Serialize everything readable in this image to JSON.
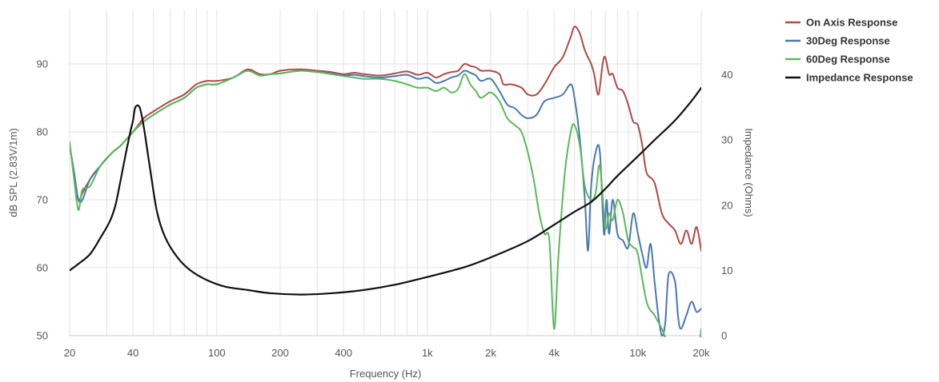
{
  "chart_data": {
    "type": "line",
    "x_scale": "log",
    "xlim": [
      20,
      20000
    ],
    "ylim": [
      50,
      98
    ],
    "y2lim": [
      0,
      50
    ],
    "xlabel": "Frequency (Hz)",
    "ylabel": "dB SPL (2.83V/1m)",
    "y2label": "Impedance (Ohms)",
    "x_ticks": [
      20,
      40,
      100,
      200,
      400,
      1000,
      2000,
      4000,
      10000,
      20000
    ],
    "x_tick_labels": [
      "20",
      "40",
      "100",
      "200",
      "400",
      "1k",
      "2k",
      "4k",
      "10k",
      "20k"
    ],
    "y_ticks": [
      50,
      60,
      70,
      80,
      90
    ],
    "y_tick_labels": [
      "50",
      "60",
      "70",
      "80",
      "90"
    ],
    "y2_ticks": [
      0,
      10,
      20,
      30,
      40
    ],
    "y2_tick_labels": [
      "0",
      "10",
      "20",
      "30",
      "40"
    ],
    "grid": true,
    "legend_position": "top-right",
    "series": [
      {
        "name": "On Axis Response",
        "axis": "left",
        "color": "#b04a45",
        "points": [
          [
            20,
            78
          ],
          [
            21,
            74
          ],
          [
            22,
            70
          ],
          [
            23,
            71
          ],
          [
            25,
            73
          ],
          [
            28,
            75
          ],
          [
            32,
            77
          ],
          [
            35,
            78
          ],
          [
            40,
            80
          ],
          [
            45,
            82
          ],
          [
            50,
            83
          ],
          [
            60,
            84.5
          ],
          [
            70,
            85.5
          ],
          [
            80,
            87
          ],
          [
            90,
            87.5
          ],
          [
            100,
            87.5
          ],
          [
            120,
            88
          ],
          [
            140,
            89.2
          ],
          [
            160,
            88.5
          ],
          [
            180,
            88.5
          ],
          [
            200,
            89
          ],
          [
            250,
            89.2
          ],
          [
            300,
            89
          ],
          [
            350,
            88.8
          ],
          [
            400,
            88.5
          ],
          [
            450,
            88.7
          ],
          [
            500,
            88.5
          ],
          [
            600,
            88.3
          ],
          [
            700,
            88.6
          ],
          [
            800,
            88.9
          ],
          [
            900,
            88.4
          ],
          [
            1000,
            88.7
          ],
          [
            1100,
            88
          ],
          [
            1200,
            88.5
          ],
          [
            1300,
            88.8
          ],
          [
            1400,
            89
          ],
          [
            1500,
            90
          ],
          [
            1600,
            89.7
          ],
          [
            1700,
            89.5
          ],
          [
            1800,
            89
          ],
          [
            2000,
            89
          ],
          [
            2200,
            88.5
          ],
          [
            2300,
            87
          ],
          [
            2500,
            87
          ],
          [
            2800,
            86.5
          ],
          [
            3000,
            85.5
          ],
          [
            3300,
            85.5
          ],
          [
            3600,
            87
          ],
          [
            4000,
            89.5
          ],
          [
            4400,
            91
          ],
          [
            4800,
            94
          ],
          [
            5000,
            95.5
          ],
          [
            5300,
            94.5
          ],
          [
            5600,
            92
          ],
          [
            6000,
            90
          ],
          [
            6200,
            88.5
          ],
          [
            6500,
            85.5
          ],
          [
            6800,
            90
          ],
          [
            7000,
            91
          ],
          [
            7300,
            88.5
          ],
          [
            7600,
            88.5
          ],
          [
            8000,
            86.5
          ],
          [
            8500,
            86
          ],
          [
            9000,
            84
          ],
          [
            9500,
            81.5
          ],
          [
            10000,
            81
          ],
          [
            10500,
            78
          ],
          [
            11000,
            74
          ],
          [
            12000,
            72.5
          ],
          [
            13000,
            68
          ],
          [
            14000,
            66.5
          ],
          [
            15000,
            65.5
          ],
          [
            16000,
            63.5
          ],
          [
            17000,
            65.5
          ],
          [
            18000,
            63.5
          ],
          [
            19000,
            66
          ],
          [
            20000,
            62.5
          ]
        ]
      },
      {
        "name": "30Deg Response",
        "axis": "left",
        "color": "#4a78b0",
        "points": [
          [
            20,
            78
          ],
          [
            21,
            74
          ],
          [
            22,
            70
          ],
          [
            23,
            70
          ],
          [
            25,
            73
          ],
          [
            28,
            75
          ],
          [
            32,
            77
          ],
          [
            35,
            78
          ],
          [
            40,
            80
          ],
          [
            45,
            81.5
          ],
          [
            50,
            82.5
          ],
          [
            60,
            84
          ],
          [
            70,
            85
          ],
          [
            80,
            86.5
          ],
          [
            90,
            87
          ],
          [
            100,
            87
          ],
          [
            120,
            88
          ],
          [
            140,
            89
          ],
          [
            160,
            88.3
          ],
          [
            180,
            88.5
          ],
          [
            200,
            88.6
          ],
          [
            250,
            89
          ],
          [
            300,
            88.8
          ],
          [
            350,
            88.6
          ],
          [
            400,
            88.3
          ],
          [
            450,
            88.4
          ],
          [
            500,
            88.2
          ],
          [
            600,
            88
          ],
          [
            700,
            88.2
          ],
          [
            800,
            88.4
          ],
          [
            900,
            87.8
          ],
          [
            1000,
            88
          ],
          [
            1100,
            87.2
          ],
          [
            1200,
            87.5
          ],
          [
            1300,
            88
          ],
          [
            1400,
            88.3
          ],
          [
            1500,
            89
          ],
          [
            1600,
            88.7
          ],
          [
            1700,
            88.3
          ],
          [
            1800,
            87.5
          ],
          [
            2000,
            87.8
          ],
          [
            2200,
            86
          ],
          [
            2400,
            84
          ],
          [
            2600,
            83.5
          ],
          [
            2800,
            82.5
          ],
          [
            3000,
            82
          ],
          [
            3300,
            82.5
          ],
          [
            3600,
            84.5
          ],
          [
            4000,
            85
          ],
          [
            4400,
            85.5
          ],
          [
            4800,
            87
          ],
          [
            5000,
            85
          ],
          [
            5300,
            79
          ],
          [
            5600,
            70
          ],
          [
            5800,
            62.5
          ],
          [
            6000,
            72
          ],
          [
            6300,
            77
          ],
          [
            6600,
            77
          ],
          [
            6900,
            65
          ],
          [
            7100,
            70
          ],
          [
            7300,
            65
          ],
          [
            7600,
            70
          ],
          [
            8000,
            65
          ],
          [
            8500,
            64
          ],
          [
            9000,
            63
          ],
          [
            9500,
            68
          ],
          [
            10000,
            65
          ],
          [
            10500,
            62
          ],
          [
            11000,
            60
          ],
          [
            11500,
            63.5
          ],
          [
            12000,
            58
          ],
          [
            12500,
            53
          ],
          [
            13000,
            50
          ],
          [
            13500,
            52
          ],
          [
            14000,
            59
          ],
          [
            15000,
            58
          ],
          [
            15500,
            53
          ],
          [
            16000,
            51
          ],
          [
            17000,
            53
          ],
          [
            18000,
            55
          ],
          [
            19000,
            53.5
          ],
          [
            20000,
            54
          ]
        ]
      },
      {
        "name": "60Deg Response",
        "axis": "left",
        "color": "#5cb85c",
        "points": [
          [
            20,
            78.5
          ],
          [
            21,
            73
          ],
          [
            22,
            68.5
          ],
          [
            23,
            71.5
          ],
          [
            25,
            72
          ],
          [
            28,
            75
          ],
          [
            32,
            77
          ],
          [
            35,
            78
          ],
          [
            40,
            80
          ],
          [
            45,
            81.5
          ],
          [
            50,
            82.5
          ],
          [
            60,
            84
          ],
          [
            70,
            85
          ],
          [
            80,
            86.5
          ],
          [
            90,
            87
          ],
          [
            100,
            87
          ],
          [
            120,
            88
          ],
          [
            140,
            89
          ],
          [
            160,
            88.3
          ],
          [
            180,
            88.5
          ],
          [
            200,
            88.6
          ],
          [
            250,
            89
          ],
          [
            300,
            88.8
          ],
          [
            350,
            88.5
          ],
          [
            400,
            88.2
          ],
          [
            450,
            88
          ],
          [
            500,
            87.8
          ],
          [
            600,
            87.8
          ],
          [
            700,
            87.5
          ],
          [
            800,
            87
          ],
          [
            900,
            86.5
          ],
          [
            1000,
            86.5
          ],
          [
            1100,
            86
          ],
          [
            1200,
            86.5
          ],
          [
            1300,
            85.8
          ],
          [
            1400,
            86.3
          ],
          [
            1500,
            88.5
          ],
          [
            1600,
            87
          ],
          [
            1700,
            86
          ],
          [
            1800,
            85
          ],
          [
            2000,
            85.8
          ],
          [
            2200,
            84.5
          ],
          [
            2400,
            82
          ],
          [
            2600,
            81
          ],
          [
            2800,
            80
          ],
          [
            3000,
            77
          ],
          [
            3200,
            73
          ],
          [
            3400,
            68
          ],
          [
            3600,
            65
          ],
          [
            3800,
            64
          ],
          [
            4000,
            51
          ],
          [
            4200,
            62
          ],
          [
            4500,
            74
          ],
          [
            4800,
            80
          ],
          [
            5000,
            81
          ],
          [
            5300,
            78
          ],
          [
            5600,
            72
          ],
          [
            6000,
            70
          ],
          [
            6300,
            71
          ],
          [
            6600,
            75
          ],
          [
            7000,
            66
          ],
          [
            7300,
            68
          ],
          [
            7600,
            67
          ],
          [
            8000,
            70
          ],
          [
            8500,
            68
          ],
          [
            9000,
            64
          ],
          [
            9500,
            63
          ],
          [
            10000,
            62
          ],
          [
            11000,
            55
          ],
          [
            12000,
            53
          ],
          [
            13000,
            51
          ],
          [
            14000,
            49
          ],
          [
            16000,
            49
          ],
          [
            18000,
            49
          ],
          [
            19500,
            49
          ],
          [
            20000,
            51
          ]
        ]
      },
      {
        "name": "Impedance Response",
        "axis": "right",
        "color": "#111111",
        "points": [
          [
            20,
            10
          ],
          [
            22,
            11
          ],
          [
            25,
            12.5
          ],
          [
            28,
            15
          ],
          [
            31,
            17.5
          ],
          [
            33,
            20
          ],
          [
            35,
            24
          ],
          [
            37,
            28
          ],
          [
            39,
            31.5
          ],
          [
            40,
            33
          ],
          [
            41,
            35
          ],
          [
            43,
            35
          ],
          [
            45,
            32
          ],
          [
            48,
            26
          ],
          [
            52,
            19
          ],
          [
            57,
            15
          ],
          [
            65,
            12
          ],
          [
            75,
            10
          ],
          [
            90,
            8.5
          ],
          [
            110,
            7.5
          ],
          [
            140,
            7
          ],
          [
            180,
            6.5
          ],
          [
            250,
            6.3
          ],
          [
            350,
            6.5
          ],
          [
            500,
            7
          ],
          [
            700,
            7.8
          ],
          [
            1000,
            9
          ],
          [
            1500,
            10.5
          ],
          [
            2000,
            12
          ],
          [
            3000,
            14.5
          ],
          [
            4000,
            17
          ],
          [
            5000,
            19
          ],
          [
            6000,
            20.5
          ],
          [
            7000,
            22.5
          ],
          [
            8000,
            24.5
          ],
          [
            10000,
            27.5
          ],
          [
            12000,
            30
          ],
          [
            15000,
            33
          ],
          [
            18000,
            36
          ],
          [
            20000,
            38
          ]
        ]
      }
    ]
  }
}
